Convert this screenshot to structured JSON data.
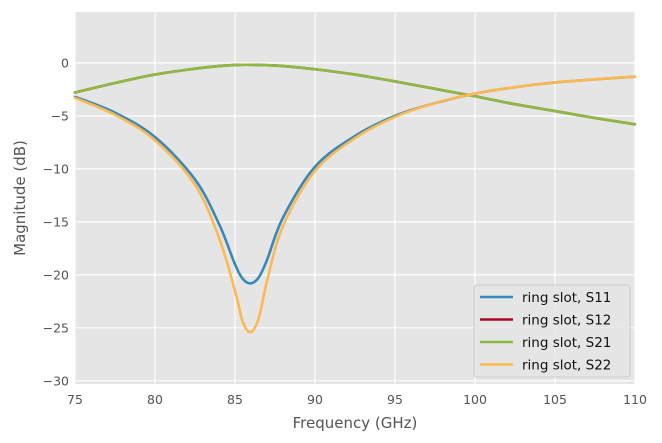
{
  "chart_data": {
    "type": "line",
    "xlabel": "Frequency (GHz)",
    "ylabel": "Magnitude (dB)",
    "xlim": [
      75,
      110
    ],
    "ylim": [
      -30.3,
      4.8
    ],
    "xticks": [
      75,
      80,
      85,
      90,
      95,
      100,
      105,
      110
    ],
    "yticks": [
      0,
      -5,
      -10,
      -15,
      -20,
      -25,
      -30
    ],
    "xtick_labels": [
      "75",
      "80",
      "85",
      "90",
      "95",
      "100",
      "105",
      "110"
    ],
    "ytick_labels": [
      "0",
      "−5",
      "−10",
      "−15",
      "−20",
      "−25",
      "−30"
    ],
    "grid": true,
    "legend_position": "lower-right",
    "x": [
      75,
      77.5,
      80,
      82.5,
      84,
      85,
      85.5,
      86,
      86.5,
      87,
      88,
      90,
      92.5,
      95,
      97.5,
      100,
      102.5,
      105,
      107.5,
      110
    ],
    "series": [
      {
        "name": "ring slot, S11",
        "color": "#348ABD",
        "values": [
          -3.2,
          -4.7,
          -7.0,
          -11.0,
          -15.2,
          -19.0,
          -20.4,
          -20.8,
          -20.2,
          -18.6,
          -14.6,
          -9.8,
          -6.9,
          -5.0,
          -3.8,
          -2.9,
          -2.3,
          -1.85,
          -1.55,
          -1.3
        ]
      },
      {
        "name": "ring slot, S12",
        "color": "#A60628",
        "values": [
          -2.8,
          -1.9,
          -1.1,
          -0.55,
          -0.3,
          -0.2,
          -0.18,
          -0.18,
          -0.2,
          -0.22,
          -0.3,
          -0.6,
          -1.1,
          -1.75,
          -2.45,
          -3.15,
          -3.9,
          -4.55,
          -5.2,
          -5.8
        ]
      },
      {
        "name": "ring slot, S21",
        "color": "#8EBA42",
        "values": [
          -2.8,
          -1.9,
          -1.1,
          -0.55,
          -0.3,
          -0.2,
          -0.18,
          -0.18,
          -0.2,
          -0.22,
          -0.3,
          -0.6,
          -1.1,
          -1.75,
          -2.45,
          -3.15,
          -3.9,
          -4.55,
          -5.2,
          -5.8
        ]
      },
      {
        "name": "ring slot, S22",
        "color": "#FFB84D",
        "values": [
          -3.3,
          -4.9,
          -7.3,
          -11.5,
          -16.5,
          -21.5,
          -24.5,
          -25.4,
          -24.0,
          -20.6,
          -15.4,
          -10.2,
          -7.1,
          -5.1,
          -3.8,
          -2.9,
          -2.3,
          -1.85,
          -1.55,
          -1.3
        ]
      }
    ]
  }
}
